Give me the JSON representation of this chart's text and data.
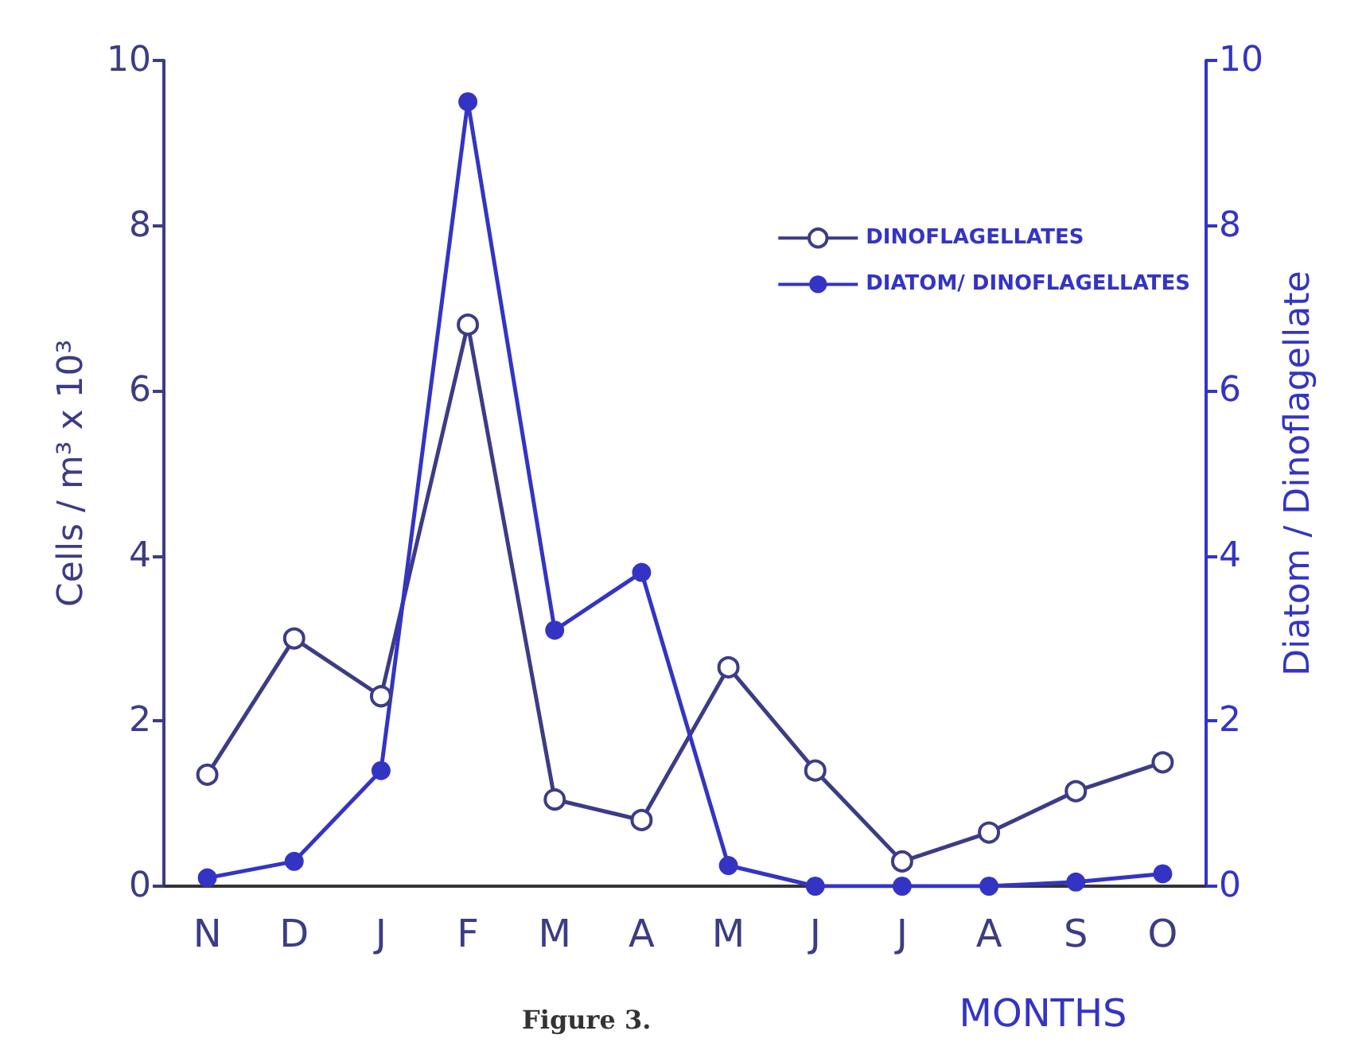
{
  "chart_data": {
    "type": "line",
    "xlabel": "MONTHS",
    "ylabel": "Cells / m³ x 10³",
    "y2label": "Diatom / Dinoflagellate",
    "categories": [
      "N",
      "D",
      "J",
      "F",
      "M",
      "A",
      "M",
      "J",
      "J",
      "A",
      "S",
      "O"
    ],
    "series": [
      {
        "name": "DINOFLAGELLATES",
        "color": "#3c3c86",
        "values": [
          1.35,
          3.0,
          2.3,
          6.8,
          1.05,
          0.8,
          2.65,
          1.4,
          0.3,
          0.65,
          1.15,
          1.5
        ]
      },
      {
        "name": "DIATOM/ DINOFLAGELLATES",
        "color": "#3434c4",
        "axis": "y2",
        "values": [
          0.1,
          0.3,
          1.4,
          9.5,
          3.1,
          3.8,
          0.25,
          0,
          0,
          0,
          0.05,
          0.15
        ]
      }
    ],
    "ylim": [
      0,
      10
    ],
    "yticks": [
      0,
      2,
      4,
      6,
      8,
      10
    ],
    "y2lim": [
      0,
      10
    ],
    "y2ticks": [
      0,
      2,
      4,
      6,
      8,
      10
    ],
    "grid": false,
    "legend": "top right",
    "marker": "circle",
    "line_style": "solid",
    "annotations": [
      "Figure 3."
    ]
  }
}
